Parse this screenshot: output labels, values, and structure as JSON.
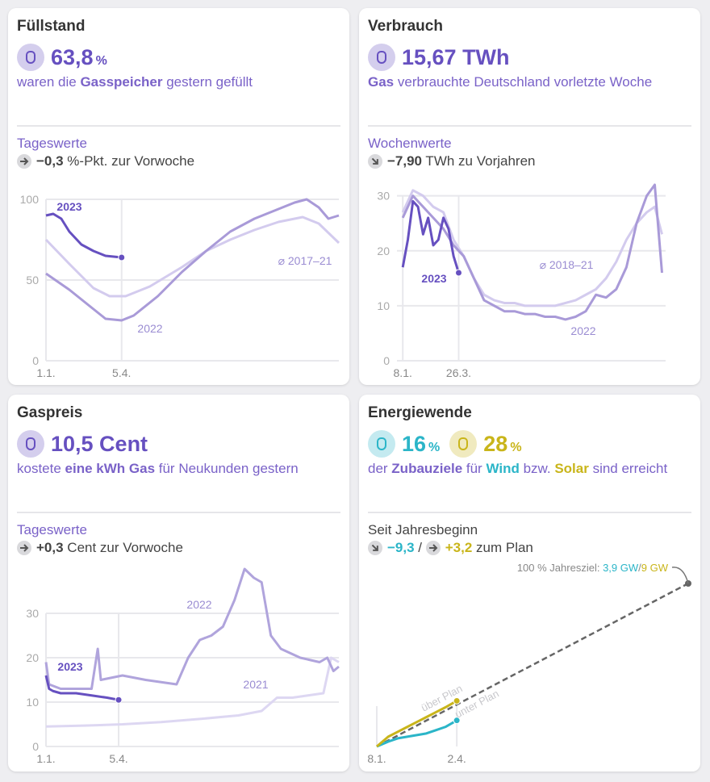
{
  "chart_data": [
    {
      "type": "line",
      "title": "Füllstand",
      "headline": [
        {
          "value": "63,8",
          "unit": "%",
          "color": "#6650c0"
        }
      ],
      "description": [
        {
          "text": "waren die "
        },
        {
          "text": "Gasspeicher",
          "bold": true
        },
        {
          "text": " gestern gefüllt"
        }
      ],
      "subtitle": "Tageswerte",
      "change": [
        {
          "arrow": 0,
          "text": "−0,3",
          "bold": true
        },
        {
          "text": " %-Pkt. zur Vorwoche"
        }
      ],
      "xlim": [
        1,
        365
      ],
      "xticks": [
        {
          "value": 1,
          "label": "1.1."
        },
        {
          "value": 95,
          "label": "5.4."
        }
      ],
      "ylim": [
        0,
        100
      ],
      "yticks": [
        0,
        50,
        100
      ],
      "series": [
        {
          "name": "⌀ 2017–21",
          "color": "#d3cbee",
          "x": [
            1,
            30,
            60,
            80,
            100,
            130,
            170,
            200,
            230,
            260,
            290,
            320,
            340,
            365
          ],
          "values": [
            75,
            60,
            45,
            40,
            40,
            46,
            58,
            68,
            75,
            81,
            86,
            89,
            85,
            73
          ]
        },
        {
          "name": "2022",
          "color": "#a99ad8",
          "x": [
            1,
            30,
            60,
            75,
            95,
            110,
            140,
            170,
            200,
            230,
            260,
            290,
            310,
            325,
            340,
            352,
            365
          ],
          "values": [
            54,
            44,
            32,
            26,
            25,
            28,
            40,
            55,
            68,
            80,
            88,
            94,
            98,
            100,
            95,
            88,
            90
          ]
        },
        {
          "name": "2023",
          "color": "#6650c0",
          "end_dot": true,
          "x": [
            1,
            10,
            20,
            30,
            45,
            60,
            75,
            95
          ],
          "values": [
            90,
            91,
            88,
            80,
            72,
            68,
            65,
            64
          ]
        }
      ]
    },
    {
      "type": "line",
      "title": "Verbrauch",
      "headline": [
        {
          "value": "15,67 TWh",
          "color": "#6650c0"
        }
      ],
      "description": [
        {
          "text": "Gas",
          "bold": true
        },
        {
          "text": " verbrauchte Deutschland vorletzte Woche"
        }
      ],
      "subtitle": "Wochenwerte",
      "change": [
        {
          "arrow": 45,
          "text": "−7,90",
          "bold": true
        },
        {
          "text": " TWh zu Vorjahren"
        }
      ],
      "xlim": [
        0,
        370
      ],
      "xticks": [
        {
          "value": 8,
          "label": "8.1."
        },
        {
          "value": 85,
          "label": "26.3."
        }
      ],
      "ylim": [
        0,
        32
      ],
      "yticks": [
        0,
        10,
        20,
        30
      ],
      "series": [
        {
          "name": "⌀ 2018–21",
          "color": "#d3cbee",
          "x": [
            8,
            22,
            36,
            50,
            64,
            78,
            92,
            106,
            120,
            134,
            148,
            162,
            176,
            190,
            204,
            218,
            232,
            246,
            260,
            274,
            288,
            302,
            316,
            330,
            344,
            355,
            365
          ],
          "values": [
            27,
            31,
            30,
            28,
            27,
            22,
            19,
            15,
            12,
            11,
            10.5,
            10.5,
            10,
            10,
            10,
            10,
            10.5,
            11,
            12,
            13,
            15,
            18,
            22,
            25,
            27,
            28,
            23
          ]
        },
        {
          "name": "2022",
          "color": "#a99ad8",
          "x": [
            8,
            22,
            36,
            50,
            64,
            78,
            92,
            106,
            120,
            134,
            148,
            162,
            176,
            190,
            204,
            218,
            232,
            246,
            260,
            274,
            288,
            302,
            316,
            330,
            344,
            355,
            365
          ],
          "values": [
            26,
            30,
            28,
            26,
            24,
            21,
            19,
            15,
            11,
            10,
            9,
            9,
            8.5,
            8.5,
            8,
            8,
            7.5,
            8,
            9,
            12,
            11.5,
            13,
            17,
            25,
            30,
            32,
            16
          ]
        },
        {
          "name": "2023",
          "color": "#6650c0",
          "end_dot": true,
          "x": [
            8,
            15,
            22,
            29,
            36,
            43,
            50,
            57,
            64,
            71,
            78,
            85
          ],
          "values": [
            17,
            22,
            29,
            28,
            23,
            26,
            21,
            22,
            26,
            24,
            19,
            16
          ]
        }
      ]
    },
    {
      "type": "line",
      "title": "Gaspreis",
      "headline": [
        {
          "value": "10,5 Cent",
          "color": "#6650c0"
        }
      ],
      "description": [
        {
          "text": "kostete "
        },
        {
          "text": "eine kWh Gas",
          "bold": true
        },
        {
          "text": " für Neukunden gestern"
        }
      ],
      "subtitle": "Tageswerte",
      "change": [
        {
          "arrow": 0,
          "text": "+0,3",
          "bold": true
        },
        {
          "text": " Cent zur Vorwoche"
        }
      ],
      "xlim": [
        1,
        380
      ],
      "xticks": [
        {
          "value": 1,
          "label": "1.1."
        },
        {
          "value": 95,
          "label": "5.4."
        }
      ],
      "ylim": [
        0,
        40
      ],
      "yticks": [
        0,
        10,
        20,
        30
      ],
      "series": [
        {
          "name": "2021",
          "color": "#ddd7f2",
          "x": [
            1,
            50,
            100,
            150,
            200,
            250,
            280,
            300,
            320,
            340,
            360,
            370,
            380
          ],
          "values": [
            4.5,
            4.7,
            5,
            5.5,
            6.2,
            7,
            8,
            11,
            11,
            11.5,
            12,
            20,
            19
          ]
        },
        {
          "name": "2022",
          "color": "#b0a4dc",
          "x": [
            1,
            5,
            20,
            60,
            68,
            72,
            100,
            130,
            170,
            185,
            200,
            215,
            230,
            245,
            258,
            270,
            280,
            292,
            305,
            330,
            355,
            365,
            373,
            380
          ],
          "values": [
            19,
            14,
            13,
            13,
            22,
            15,
            16,
            15,
            14,
            20,
            24,
            25,
            27,
            33,
            40,
            38,
            37,
            25,
            22,
            20,
            19,
            20,
            17,
            18
          ]
        },
        {
          "name": "2023",
          "color": "#6650c0",
          "end_dot": true,
          "x": [
            1,
            5,
            10,
            20,
            40,
            60,
            80,
            95
          ],
          "values": [
            16,
            13,
            12.5,
            12,
            12,
            11.5,
            11,
            10.5
          ]
        }
      ]
    },
    {
      "type": "line",
      "title": "Energiewende",
      "headline": [
        {
          "value": "16",
          "unit": "%",
          "color": "#2bb5c8"
        },
        {
          "value": "28",
          "unit": "%",
          "color": "#c9b51a"
        }
      ],
      "description": [
        {
          "text": "der "
        },
        {
          "text": "Zubauziele",
          "bold": true
        },
        {
          "text": " für "
        },
        {
          "text": "Wind",
          "bold": true,
          "color": "#2bb5c8"
        },
        {
          "text": " bzw. "
        },
        {
          "text": "Solar",
          "bold": true,
          "color": "#c9b51a"
        },
        {
          "text": " sind erreicht"
        }
      ],
      "subtitle": "Seit Jahresbeginn",
      "change": [
        {
          "arrow": 45,
          "text": "−9,3",
          "bold": true,
          "color": "#2bb5c8"
        },
        {
          "text": " / "
        },
        {
          "arrow": 0,
          "text": "+3,2",
          "bold": true,
          "color": "#c9b51a"
        },
        {
          "text": " zum Plan"
        }
      ],
      "xlim": [
        8,
        335
      ],
      "xticks": [
        {
          "value": 8,
          "label": "8.1."
        },
        {
          "value": 92,
          "label": "2.4."
        }
      ],
      "ylim": [
        0,
        100
      ],
      "plan": {
        "color": "#666666",
        "x": [
          8,
          335
        ],
        "values": [
          0,
          100
        ]
      },
      "annotation": [
        {
          "text": "100 % Jahresziel: "
        },
        {
          "text": "3,9 GW",
          "color": "#2bb5c8"
        },
        {
          "text": "/"
        },
        {
          "text": "9 GW",
          "color": "#c9b51a"
        }
      ],
      "plan_labels": [
        "über Plan",
        "unter Plan"
      ],
      "series": [
        {
          "color": "#2bb5c8",
          "end_dot": true,
          "x": [
            8,
            20,
            30,
            40,
            50,
            60,
            70,
            80,
            92
          ],
          "values": [
            0,
            3,
            5,
            6,
            7,
            8,
            10,
            12,
            16
          ]
        },
        {
          "color": "#c9b51a",
          "end_dot": true,
          "x": [
            8,
            20,
            30,
            40,
            50,
            60,
            70,
            80,
            92
          ],
          "values": [
            0,
            6,
            9,
            12,
            15,
            18,
            21,
            24,
            28
          ]
        }
      ]
    }
  ]
}
